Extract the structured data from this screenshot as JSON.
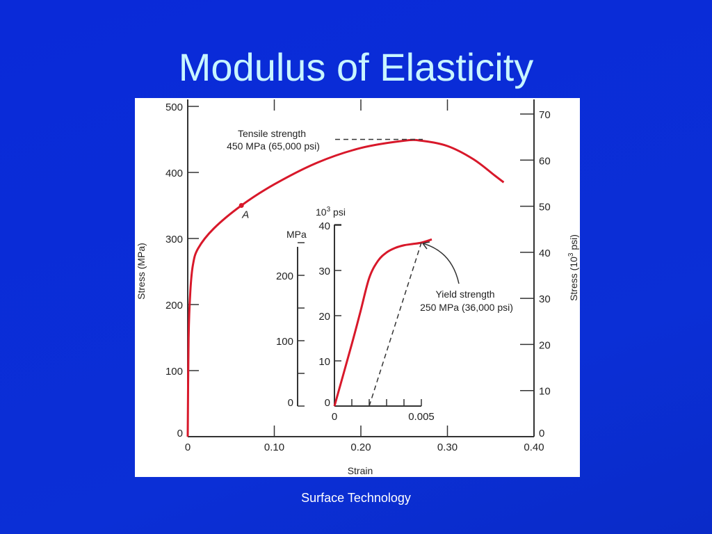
{
  "slide": {
    "title": "Modulus of Elasticity",
    "footer": "Surface Technology"
  },
  "chart_data": {
    "type": "line",
    "main": {
      "xlabel": "Strain",
      "ylabel_left": "Stress (MPa)",
      "ylabel_right": "Stress (10^3 psi)",
      "xlim": [
        0,
        0.4
      ],
      "ylim_left": [
        0,
        500
      ],
      "ylim_right": [
        0,
        70
      ],
      "x_ticks": [
        "0",
        "0.10",
        "0.20",
        "0.30",
        "0.40"
      ],
      "y_ticks_left": [
        "0",
        "100",
        "200",
        "300",
        "400",
        "500"
      ],
      "y_ticks_right": [
        "0",
        "10",
        "20",
        "30",
        "40",
        "50",
        "60",
        "70"
      ],
      "curve_color": "#d8182a",
      "curve": {
        "x": [
          0,
          0.001,
          0.003,
          0.006,
          0.012,
          0.03,
          0.062,
          0.1,
          0.15,
          0.2,
          0.25,
          0.27,
          0.3,
          0.33,
          0.355,
          0.365
        ],
        "y": [
          0,
          150,
          220,
          260,
          285,
          315,
          350,
          382,
          415,
          437,
          448,
          448,
          440,
          420,
          395,
          385
        ]
      },
      "point_A": {
        "label": "A",
        "x": 0.062,
        "y": 350
      },
      "annotation_tensile": {
        "line1": "Tensile strength",
        "line2": "450 MPa (65,000 psi)",
        "y": 450
      }
    },
    "inset": {
      "xlim": [
        0,
        0.005
      ],
      "x_ticks": [
        "0",
        "0.005"
      ],
      "unit_mpa": "MPa",
      "unit_psi_base": "10",
      "unit_psi_exp": "3",
      "unit_psi_suffix": "psi",
      "y_ticks_mpa": [
        "0",
        "100",
        "200"
      ],
      "y_ticks_psi": [
        "0",
        "10",
        "20",
        "30",
        "40"
      ],
      "curve": {
        "x": [
          0,
          0.001,
          0.0015,
          0.002,
          0.0025,
          0.003,
          0.0035,
          0.004,
          0.0045,
          0.005,
          0.0056
        ],
        "y": [
          0,
          95,
          145,
          196,
          222,
          235,
          242,
          246,
          248,
          250,
          255
        ]
      },
      "offset_line": {
        "x": [
          0.002,
          0.005
        ],
        "y": [
          0,
          250
        ]
      },
      "annotation_yield": {
        "line1": "Yield strength",
        "line2": "250 MPa (36,000 psi)"
      }
    }
  }
}
